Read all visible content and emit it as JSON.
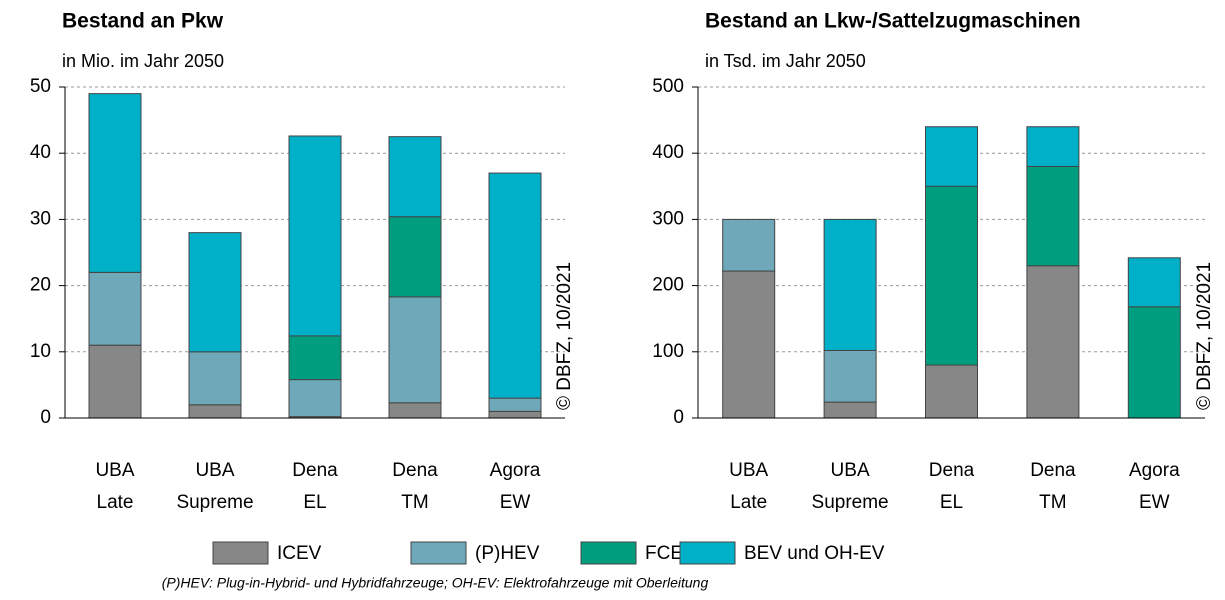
{
  "chart_data": [
    {
      "type": "bar",
      "stacked": true,
      "title": "Bestand an Pkw",
      "subtitle": "in Mio. im Jahr 2050",
      "annotation": "© DBFZ, 10/2021",
      "categories": [
        [
          "UBA",
          "Late"
        ],
        [
          "UBA",
          "Supreme"
        ],
        [
          "Dena",
          "EL"
        ],
        [
          "Dena",
          "TM"
        ],
        [
          "Agora",
          "EW"
        ]
      ],
      "series": [
        {
          "values": [
            11,
            2,
            0.2,
            2.3,
            1
          ]
        },
        {
          "values": [
            11,
            8,
            5.6,
            16,
            2
          ]
        },
        {
          "values": [
            0,
            0,
            6.6,
            12.1,
            0
          ]
        },
        {
          "values": [
            27,
            18,
            30.2,
            12.1,
            34
          ]
        }
      ],
      "ylim": [
        0,
        50
      ],
      "yticks": [
        0,
        10,
        20,
        30,
        40,
        50
      ],
      "grid": true
    },
    {
      "type": "bar",
      "stacked": true,
      "title": "Bestand an Lkw-/Sattelzugmaschinen",
      "subtitle": "in Tsd. im Jahr 2050",
      "annotation": "© DBFZ, 10/2021",
      "categories": [
        [
          "UBA",
          "Late"
        ],
        [
          "UBA",
          "Supreme"
        ],
        [
          "Dena",
          "EL"
        ],
        [
          "Dena",
          "TM"
        ],
        [
          "Agora",
          "EW"
        ]
      ],
      "series": [
        {
          "values": [
            222,
            24,
            80,
            230,
            0
          ]
        },
        {
          "values": [
            78,
            78,
            0,
            0,
            0
          ]
        },
        {
          "values": [
            0,
            0,
            270,
            150,
            168
          ]
        },
        {
          "values": [
            0,
            198,
            90,
            60,
            74
          ]
        }
      ],
      "ylim": [
        0,
        500
      ],
      "yticks": [
        0,
        100,
        200,
        300,
        400,
        500
      ],
      "grid": true
    }
  ],
  "legend": {
    "items": [
      {
        "name": "ICEV",
        "color": "#878787"
      },
      {
        "name": "(P)HEV",
        "color": "#6fa8b8"
      },
      {
        "name": "FCEV",
        "color": "#009e7f"
      },
      {
        "name": "BEV und OH-EV",
        "color": "#00b0c8"
      }
    ]
  },
  "footnote": "(P)HEV: Plug-in-Hybrid- und Hybridfahrzeuge; OH-EV: Elektrofahrzeuge mit Oberleitung"
}
